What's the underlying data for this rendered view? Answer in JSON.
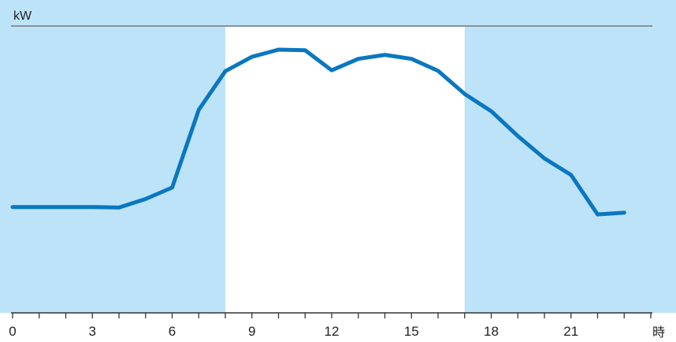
{
  "chart_data": {
    "type": "line",
    "title": "",
    "ylabel": "kW",
    "xlabel": "時",
    "xlim": [
      0,
      24
    ],
    "ylim": [
      0,
      10
    ],
    "x_ticks": [
      0,
      3,
      6,
      9,
      12,
      15,
      18,
      21
    ],
    "x_tick_labels": [
      "0",
      "3",
      "6",
      "9",
      "12",
      "15",
      "18",
      "21"
    ],
    "highlight_band": [
      8,
      17
    ],
    "grid": false,
    "colors": {
      "background": "#bde3f8",
      "highlight": "#ffffff",
      "line": "#0a77c0",
      "axis": "#333333",
      "top_line": "#777777"
    },
    "series": [
      {
        "x": [
          0,
          1,
          2,
          3,
          4,
          5,
          6,
          7,
          8,
          9,
          10,
          11,
          12,
          13,
          14,
          15,
          16,
          17,
          18,
          19,
          20,
          21,
          22,
          23
        ],
        "values": [
          3.7,
          3.7,
          3.7,
          3.7,
          3.68,
          3.98,
          4.38,
          7.1,
          8.45,
          8.95,
          9.2,
          9.18,
          8.48,
          8.88,
          9.02,
          8.88,
          8.46,
          7.65,
          7.05,
          6.18,
          5.4,
          4.82,
          3.44,
          3.5
        ]
      }
    ]
  }
}
